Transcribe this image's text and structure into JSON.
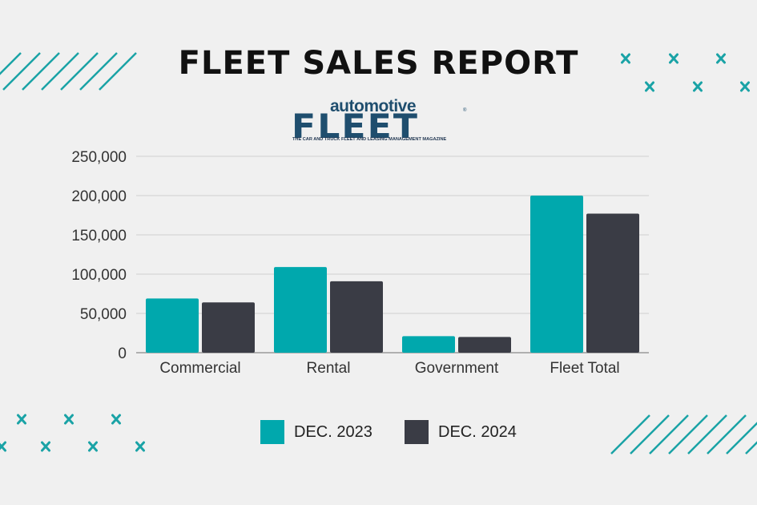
{
  "header": {
    "title": "FLEET SALES REPORT",
    "logo_top": "automotive",
    "logo_main": "FLEET",
    "logo_tagline": "THE CAR AND TRUCK FLEET AND LEASING MANAGEMENT MAGAZINE",
    "logo_reg": "®"
  },
  "colors": {
    "series1": "#00a8ad",
    "series2": "#3a3c45",
    "accent": "#1aa3a6",
    "logo": "#1f4e6e"
  },
  "chart_data": {
    "type": "bar",
    "categories": [
      "Commercial",
      "Rental",
      "Government",
      "Fleet Total"
    ],
    "series": [
      {
        "name": "DEC. 2023",
        "values": [
          69000,
          109000,
          21000,
          200000
        ]
      },
      {
        "name": "DEC. 2024",
        "values": [
          64000,
          91000,
          20000,
          177000
        ]
      }
    ],
    "ylim": [
      0,
      250000
    ],
    "yticks": [
      0,
      50000,
      100000,
      150000,
      200000,
      250000
    ],
    "ytick_labels": [
      "0",
      "50,000",
      "100,000",
      "150,000",
      "200,000",
      "250,000"
    ],
    "grid": true,
    "legend": "bottom"
  }
}
